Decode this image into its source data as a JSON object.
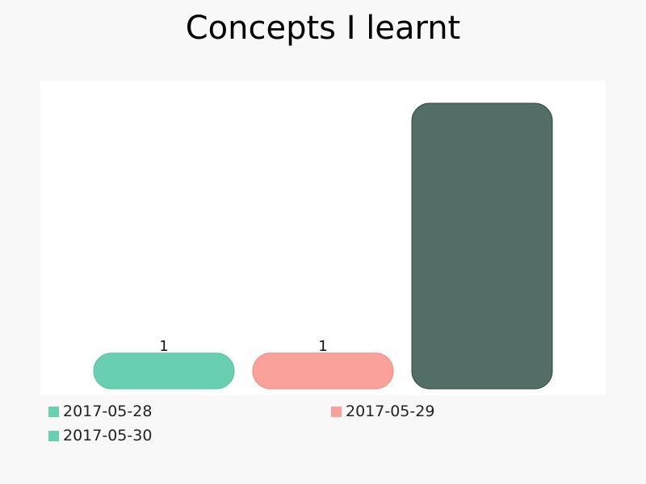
{
  "chart_data": {
    "type": "bar",
    "title": "Concepts I learnt",
    "categories": [
      "2017-05-28",
      "2017-05-29",
      "2017-05-30"
    ],
    "values": [
      1,
      1,
      8
    ],
    "data_labels": [
      "1",
      "1",
      ""
    ],
    "ylim": [
      0,
      8
    ],
    "grid": false,
    "legend_position": "bottom",
    "colors": [
      "#68cfb2",
      "#f9a19a",
      "#526e66"
    ],
    "border_colors": [
      "#5bbf9f",
      "#ee8b83",
      "#2f4a42"
    ]
  }
}
